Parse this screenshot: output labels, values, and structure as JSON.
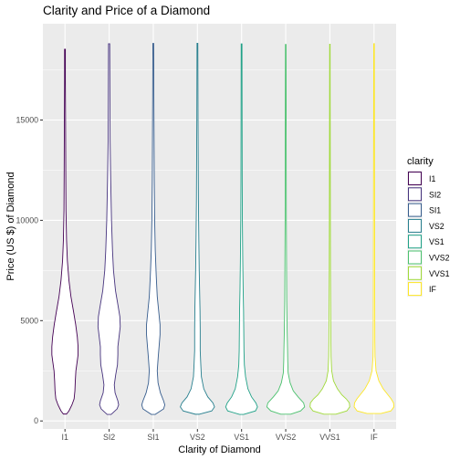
{
  "chart_data": {
    "type": "violin",
    "title": "Clarity and Price of a Diamond",
    "xlabel": "Clarity of Diamond",
    "ylabel": "Price (US $) of Diamond",
    "ylim": [
      -400,
      19800
    ],
    "yticks": [
      0,
      5000,
      10000,
      15000
    ],
    "ytick_labels": [
      "0",
      "5000",
      "10000",
      "15000"
    ],
    "grid": true,
    "legend": {
      "title": "clarity",
      "placement": "right",
      "entries": [
        "I1",
        "SI2",
        "SI1",
        "VS2",
        "VS1",
        "VVS2",
        "VVS1",
        "IF"
      ]
    },
    "categories": [
      "I1",
      "SI2",
      "SI1",
      "VS2",
      "VS1",
      "VVS2",
      "VVS1",
      "IF"
    ],
    "colors": [
      "#440154",
      "#46337e",
      "#365c8d",
      "#277f8e",
      "#1fa187",
      "#4ac16d",
      "#a0da39",
      "#fde725"
    ],
    "series": [
      {
        "name": "I1",
        "min": 345,
        "max": 18531,
        "profile": [
          [
            345,
            0.08
          ],
          [
            500,
            0.2
          ],
          [
            800,
            0.35
          ],
          [
            1100,
            0.46
          ],
          [
            1500,
            0.5
          ],
          [
            2000,
            0.52
          ],
          [
            2500,
            0.55
          ],
          [
            3000,
            0.62
          ],
          [
            3300,
            0.66
          ],
          [
            3700,
            0.66
          ],
          [
            4200,
            0.62
          ],
          [
            4800,
            0.54
          ],
          [
            5400,
            0.44
          ],
          [
            6200,
            0.3
          ],
          [
            7000,
            0.2
          ],
          [
            8000,
            0.12
          ],
          [
            9000,
            0.08
          ],
          [
            10500,
            0.05
          ],
          [
            12500,
            0.04
          ],
          [
            15000,
            0.03
          ],
          [
            17000,
            0.02
          ],
          [
            18531,
            0.02
          ]
        ]
      },
      {
        "name": "SI2",
        "min": 326,
        "max": 18804,
        "profile": [
          [
            326,
            0.1
          ],
          [
            600,
            0.4
          ],
          [
            800,
            0.48
          ],
          [
            1000,
            0.44
          ],
          [
            1400,
            0.3
          ],
          [
            1800,
            0.26
          ],
          [
            2300,
            0.33
          ],
          [
            2800,
            0.42
          ],
          [
            3300,
            0.44
          ],
          [
            3700,
            0.44
          ],
          [
            4200,
            0.5
          ],
          [
            4700,
            0.56
          ],
          [
            5200,
            0.54
          ],
          [
            5800,
            0.44
          ],
          [
            6500,
            0.32
          ],
          [
            7500,
            0.22
          ],
          [
            8500,
            0.17
          ],
          [
            10000,
            0.12
          ],
          [
            12000,
            0.08
          ],
          [
            14000,
            0.05
          ],
          [
            16000,
            0.04
          ],
          [
            18804,
            0.03
          ]
        ]
      },
      {
        "name": "SI1",
        "min": 326,
        "max": 18818,
        "profile": [
          [
            326,
            0.1
          ],
          [
            600,
            0.52
          ],
          [
            800,
            0.58
          ],
          [
            1000,
            0.52
          ],
          [
            1400,
            0.36
          ],
          [
            1900,
            0.24
          ],
          [
            2500,
            0.2
          ],
          [
            3200,
            0.25
          ],
          [
            3800,
            0.3
          ],
          [
            4300,
            0.34
          ],
          [
            4800,
            0.34
          ],
          [
            5400,
            0.28
          ],
          [
            6200,
            0.2
          ],
          [
            7200,
            0.15
          ],
          [
            8500,
            0.1
          ],
          [
            10000,
            0.07
          ],
          [
            12000,
            0.05
          ],
          [
            14000,
            0.04
          ],
          [
            16000,
            0.03
          ],
          [
            18818,
            0.02
          ]
        ]
      },
      {
        "name": "VS2",
        "min": 334,
        "max": 18823,
        "profile": [
          [
            334,
            0.1
          ],
          [
            500,
            0.72
          ],
          [
            700,
            0.86
          ],
          [
            900,
            0.78
          ],
          [
            1200,
            0.52
          ],
          [
            1600,
            0.32
          ],
          [
            2200,
            0.2
          ],
          [
            2800,
            0.17
          ],
          [
            3500,
            0.14
          ],
          [
            4500,
            0.14
          ],
          [
            5500,
            0.13
          ],
          [
            6500,
            0.11
          ],
          [
            7500,
            0.09
          ],
          [
            9000,
            0.07
          ],
          [
            11000,
            0.05
          ],
          [
            13000,
            0.04
          ],
          [
            15000,
            0.03
          ],
          [
            17000,
            0.025
          ],
          [
            18823,
            0.02
          ]
        ]
      },
      {
        "name": "VS1",
        "min": 327,
        "max": 18795,
        "profile": [
          [
            327,
            0.1
          ],
          [
            500,
            0.7
          ],
          [
            700,
            0.8
          ],
          [
            900,
            0.72
          ],
          [
            1200,
            0.5
          ],
          [
            1600,
            0.32
          ],
          [
            2200,
            0.2
          ],
          [
            2800,
            0.14
          ],
          [
            3500,
            0.12
          ],
          [
            4500,
            0.11
          ],
          [
            5500,
            0.1
          ],
          [
            6500,
            0.08
          ],
          [
            8000,
            0.06
          ],
          [
            10000,
            0.04
          ],
          [
            12000,
            0.03
          ],
          [
            15000,
            0.025
          ],
          [
            18795,
            0.02
          ]
        ]
      },
      {
        "name": "VVS2",
        "min": 336,
        "max": 18768,
        "profile": [
          [
            336,
            0.25
          ],
          [
            500,
            0.75
          ],
          [
            700,
            0.95
          ],
          [
            900,
            0.9
          ],
          [
            1200,
            0.62
          ],
          [
            1500,
            0.38
          ],
          [
            1900,
            0.22
          ],
          [
            2400,
            0.12
          ],
          [
            3000,
            0.1
          ],
          [
            3600,
            0.09
          ],
          [
            4500,
            0.07
          ],
          [
            6000,
            0.05
          ],
          [
            8000,
            0.04
          ],
          [
            10000,
            0.03
          ],
          [
            13000,
            0.025
          ],
          [
            16000,
            0.02
          ],
          [
            18768,
            0.015
          ]
        ]
      },
      {
        "name": "VVS1",
        "min": 336,
        "max": 18777,
        "profile": [
          [
            336,
            0.3
          ],
          [
            500,
            0.85
          ],
          [
            700,
            1.0
          ],
          [
            900,
            0.98
          ],
          [
            1100,
            0.82
          ],
          [
            1300,
            0.6
          ],
          [
            1600,
            0.38
          ],
          [
            2000,
            0.18
          ],
          [
            2500,
            0.09
          ],
          [
            3200,
            0.06
          ],
          [
            4000,
            0.05
          ],
          [
            5500,
            0.04
          ],
          [
            7500,
            0.03
          ],
          [
            10000,
            0.025
          ],
          [
            13000,
            0.02
          ],
          [
            16000,
            0.015
          ],
          [
            18777,
            0.012
          ]
        ]
      },
      {
        "name": "IF",
        "min": 369,
        "max": 18806,
        "profile": [
          [
            369,
            0.35
          ],
          [
            500,
            0.85
          ],
          [
            700,
            1.0
          ],
          [
            900,
            0.98
          ],
          [
            1100,
            0.86
          ],
          [
            1300,
            0.7
          ],
          [
            1600,
            0.46
          ],
          [
            2000,
            0.24
          ],
          [
            2500,
            0.1
          ],
          [
            3200,
            0.05
          ],
          [
            4000,
            0.04
          ],
          [
            6000,
            0.035
          ],
          [
            9000,
            0.03
          ],
          [
            12000,
            0.025
          ],
          [
            15000,
            0.02
          ],
          [
            18806,
            0.015
          ]
        ]
      }
    ]
  }
}
